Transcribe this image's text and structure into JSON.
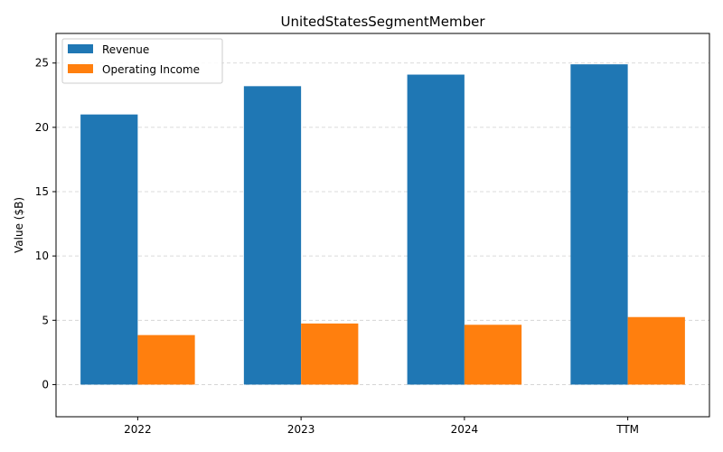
{
  "chart_data": {
    "type": "bar",
    "title": "UnitedStatesSegmentMember",
    "xlabel": "",
    "ylabel": "Value ($B)",
    "categories": [
      "2022",
      "2023",
      "2024",
      "TTM"
    ],
    "series": [
      {
        "name": "Revenue",
        "values": [
          21.0,
          23.2,
          24.1,
          24.9
        ],
        "color": "#1f77b4"
      },
      {
        "name": "Operating Income",
        "values": [
          3.85,
          4.75,
          4.65,
          5.25
        ],
        "color": "#ff7f0e"
      }
    ],
    "ylim": [
      -2.5,
      27.3
    ],
    "yticks": [
      "0",
      "5",
      "10",
      "15",
      "20",
      "25"
    ],
    "grid": "y-dashed",
    "legend_position": "top-left"
  }
}
